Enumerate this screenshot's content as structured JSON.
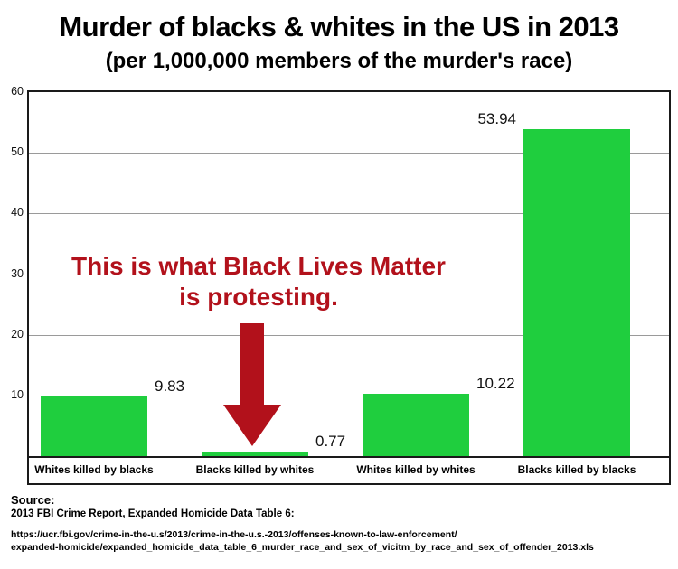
{
  "chart_data": {
    "type": "bar",
    "title": "Murder of blacks & whites in the US in 2013",
    "subtitle": "(per 1,000,000 members of the murder's race)",
    "categories": [
      "Whites killed by blacks",
      "Blacks killed by whites",
      "Whites killed by whites",
      "Blacks killed by blacks"
    ],
    "values": [
      9.83,
      0.77,
      10.22,
      53.94
    ],
    "value_labels": [
      "9.83",
      "0.77",
      "10.22",
      "53.94"
    ],
    "xlabel": "",
    "ylabel": "",
    "ylim": [
      0,
      60
    ],
    "yticks": [
      10,
      20,
      30,
      40,
      50,
      60
    ],
    "grid": true,
    "legend_position": "none",
    "bar_color": "#1fce3e"
  },
  "annotation": {
    "line1": "This is what Black Lives Matter",
    "line2": "is protesting.",
    "color": "#b2111b",
    "arrow_icon": "down-arrow"
  },
  "source": {
    "label": "Source:",
    "line1": "2013 FBI Crime Report, Expanded Homicide Data Table 6:",
    "line2": "https://ucr.fbi.gov/crime-in-the-u.s/2013/crime-in-the-u.s.-2013/offenses-known-to-law-enforcement/",
    "line3": "expanded-homicide/expanded_homicide_data_table_6_murder_race_and_sex_of_vicitm_by_race_and_sex_of_offender_2013.xls"
  }
}
